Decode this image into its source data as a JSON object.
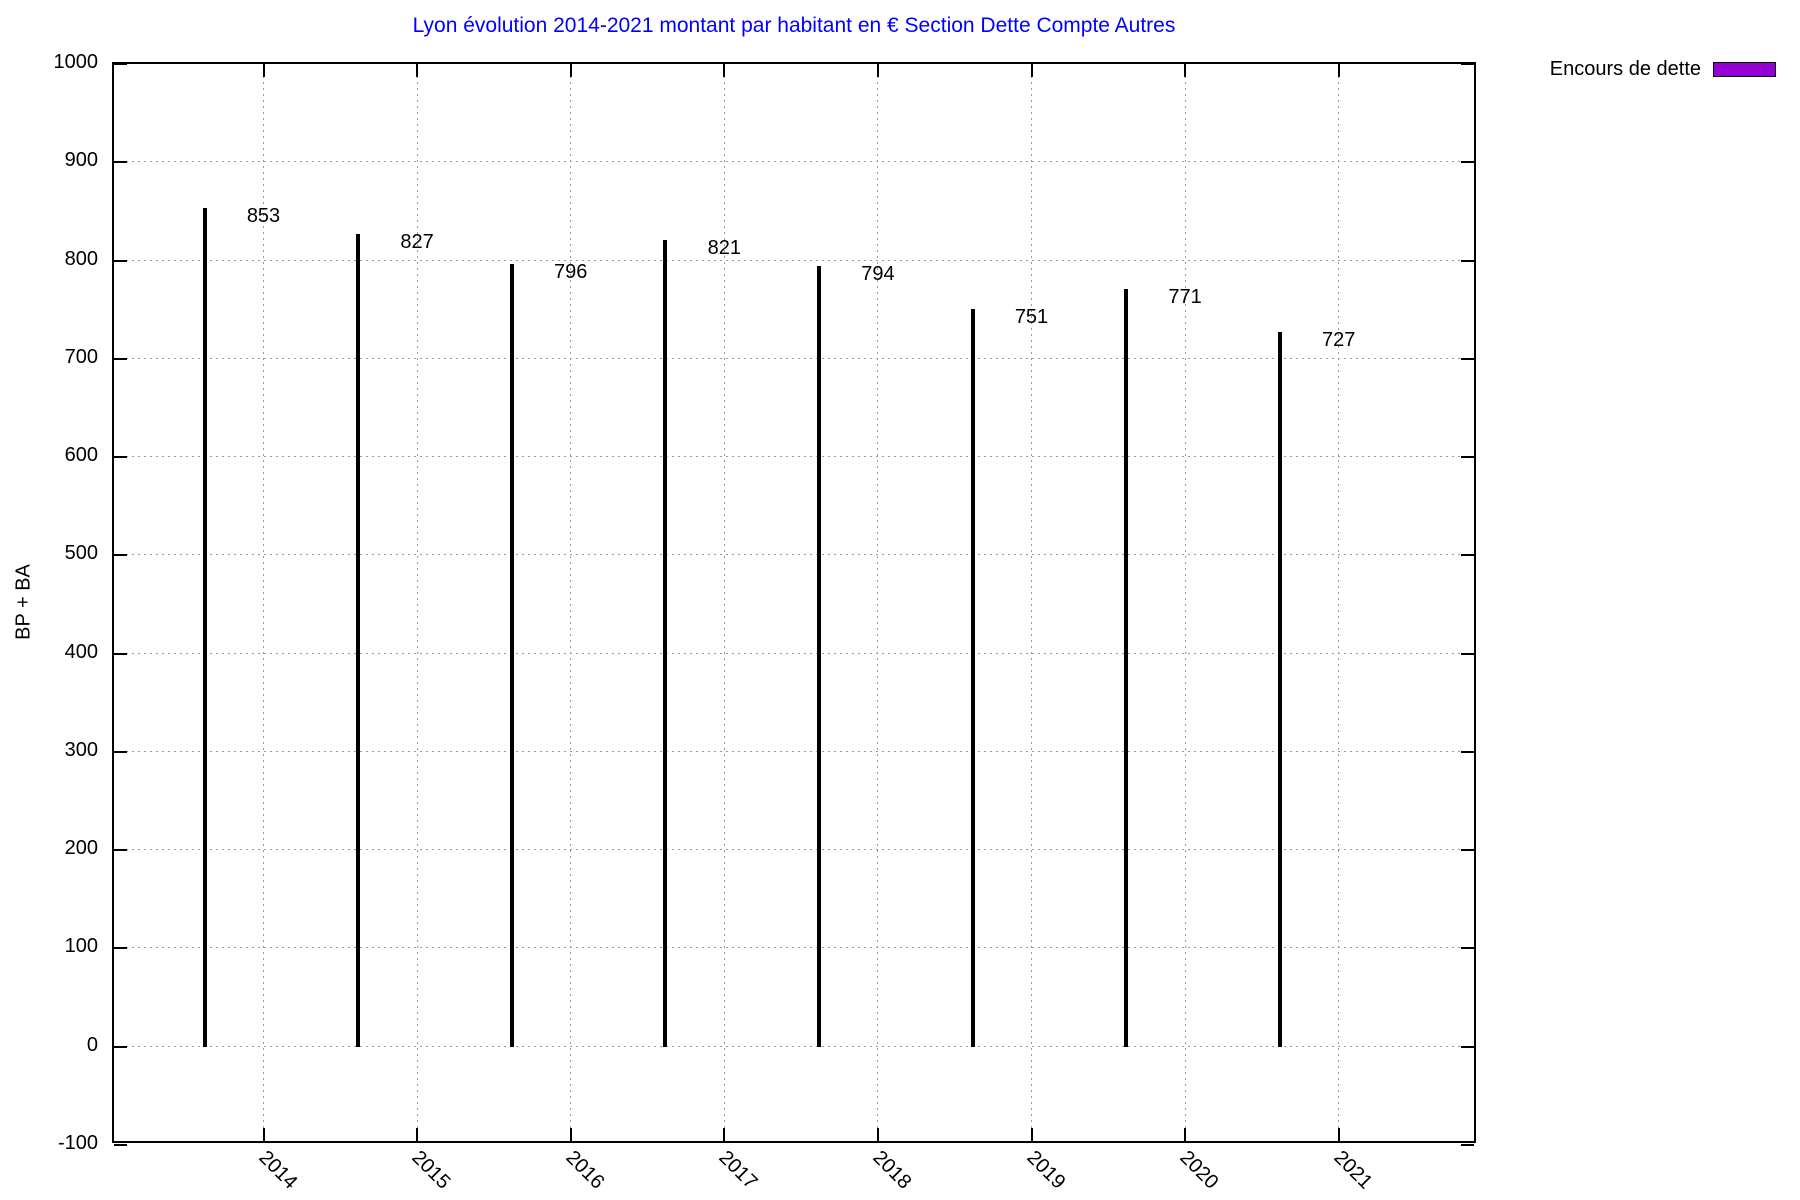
{
  "chart_data": {
    "type": "bar",
    "title": "Lyon évolution 2014-2021 montant par habitant en € Section Dette Compte Autres",
    "xlabel": "",
    "ylabel": "BP + BA",
    "categories": [
      "2014",
      "2015",
      "2016",
      "2017",
      "2018",
      "2019",
      "2020",
      "2021"
    ],
    "series": [
      {
        "name": "Encours de dette",
        "values": [
          853,
          827,
          796,
          821,
          794,
          751,
          771,
          727
        ]
      }
    ],
    "bar_value_labels": [
      853,
      827,
      796,
      821,
      794,
      751,
      771,
      727
    ],
    "ylim": [
      -100,
      1000
    ],
    "yticks": [
      -100,
      0,
      100,
      200,
      300,
      400,
      500,
      600,
      700,
      800,
      900,
      1000
    ],
    "grid": true,
    "legend_position": "top-right-outside",
    "colors": {
      "title": "#0000ff",
      "bar_fill": "#9400d3",
      "bar_border": "#000000",
      "grid": "#9a9a9a",
      "axis": "#000000",
      "text": "#000000"
    }
  },
  "legend": {
    "items": [
      {
        "label": "Encours de dette",
        "swatch_color": "#9400d3"
      }
    ]
  }
}
